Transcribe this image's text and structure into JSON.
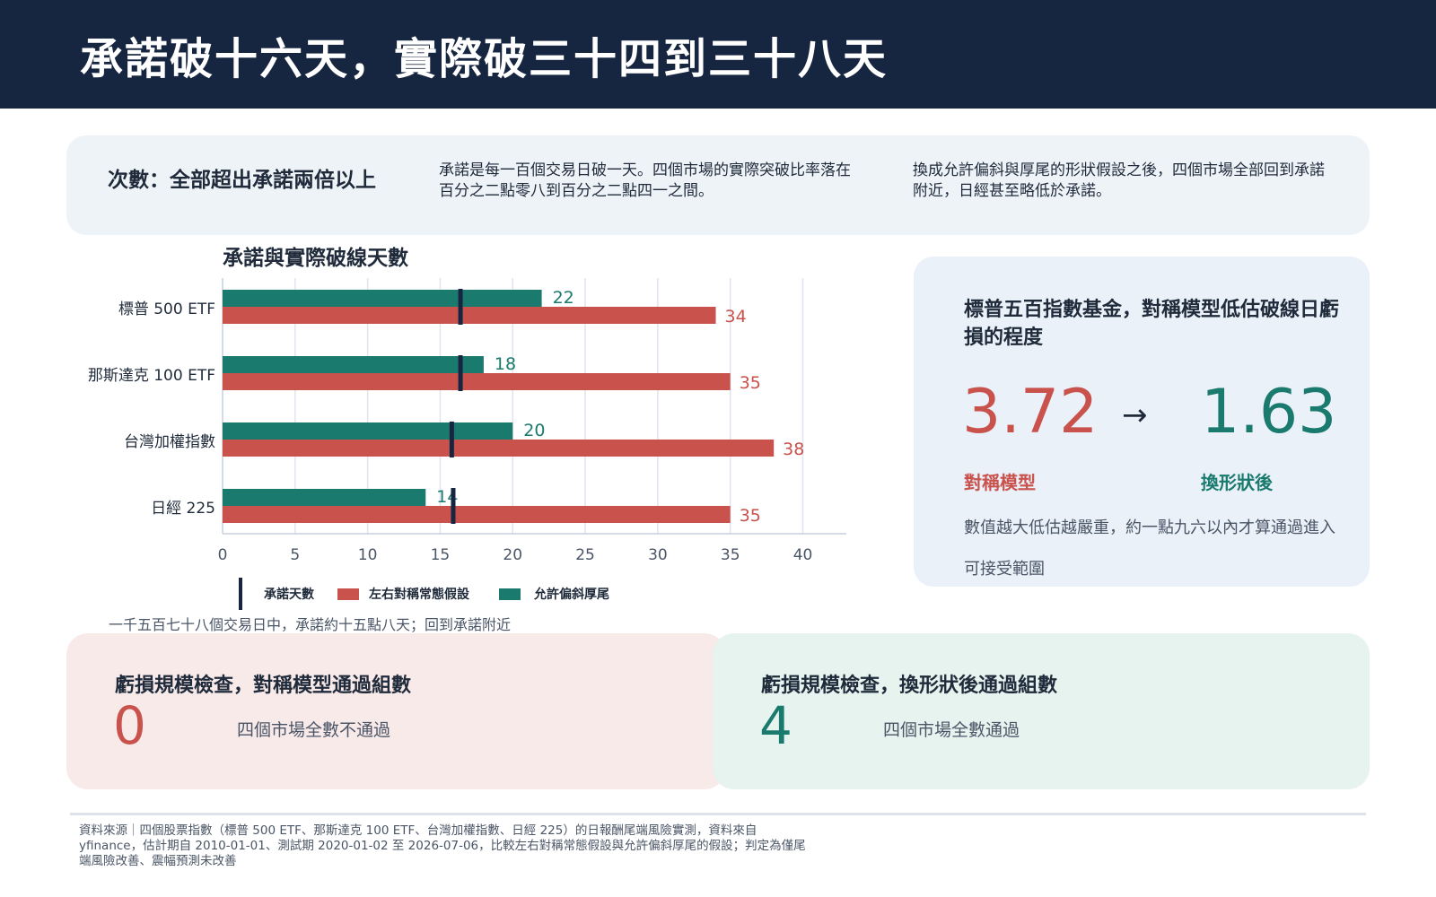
{
  "header": {
    "title": "承諾破十六天，實際破三十四到三十八天"
  },
  "summary": {
    "lead": "次數：全部超出承諾兩倍以上",
    "p1": "承諾是每一百個交易日破一天。四個市場的實際突破比率落在百分之二點零八到百分之二點四一之間。",
    "p2": "換成允許偏斜與厚尾的形狀假設之後，四個市場全部回到承諾附近，日經甚至略低於承諾。"
  },
  "chart_data": {
    "type": "bar",
    "orientation": "horizontal",
    "title": "承諾與實際破線天數",
    "categories": [
      "標普 500 ETF",
      "那斯達克 100 ETF",
      "台灣加權指數",
      "日經 225"
    ],
    "series": [
      {
        "name": "允許偏斜厚尾",
        "color": "#1a7a6e",
        "values": [
          22,
          18,
          20,
          14
        ]
      },
      {
        "name": "左右對稱常態假設",
        "color": "#c9524d",
        "values": [
          34,
          35,
          38,
          35
        ]
      }
    ],
    "commitment": {
      "name": "承諾天數",
      "color": "#172640",
      "values": [
        16.4,
        16.4,
        15.8,
        15.9
      ]
    },
    "xlim": [
      0,
      43
    ],
    "xticks": [
      0,
      5,
      10,
      15,
      20,
      25,
      30,
      35,
      40
    ],
    "grid": true,
    "legend_order": [
      "承諾天數",
      "左右對稱常態假設",
      "允許偏斜厚尾"
    ]
  },
  "legend": {
    "commit": "承諾天數",
    "normal": "左右對稱常態假設",
    "skew": "允許偏斜厚尾"
  },
  "note": "一千五百七十八個交易日中，承諾約十五點八天；回到承諾附近",
  "kpi": {
    "title": "標普五百指數基金，對稱模型低估破線日虧損的程度",
    "before_value": "3.72",
    "arrow": "→",
    "after_value": "1.63",
    "before_label": "對稱模型",
    "after_label": "換形狀後",
    "desc": "數值越大低估越嚴重，約一點九六以內才算通過進入可接受範圍"
  },
  "cards": {
    "symmetric": {
      "title": "虧損規模檢查，對稱模型通過組數",
      "value": "0",
      "desc": "四個市場全數不通過"
    },
    "shape": {
      "title": "虧損規模檢查，換形狀後通過組數",
      "value": "4",
      "desc": "四個市場全數通過"
    }
  },
  "source": "資料來源｜四個股票指數（標普 500 ETF、那斯達克 100 ETF、台灣加權指數、日經 225）的日報酬尾端風險實測，資料來自 yfinance，估計期自 2010-01-01、測試期 2020-01-02 至 2026-07-06，比較左右對稱常態假設與允許偏斜厚尾的假設；判定為僅尾端風險改善、震幅預測未改善",
  "colors": {
    "navy": "#172640",
    "red": "#c9524d",
    "teal": "#1a7a6e"
  }
}
